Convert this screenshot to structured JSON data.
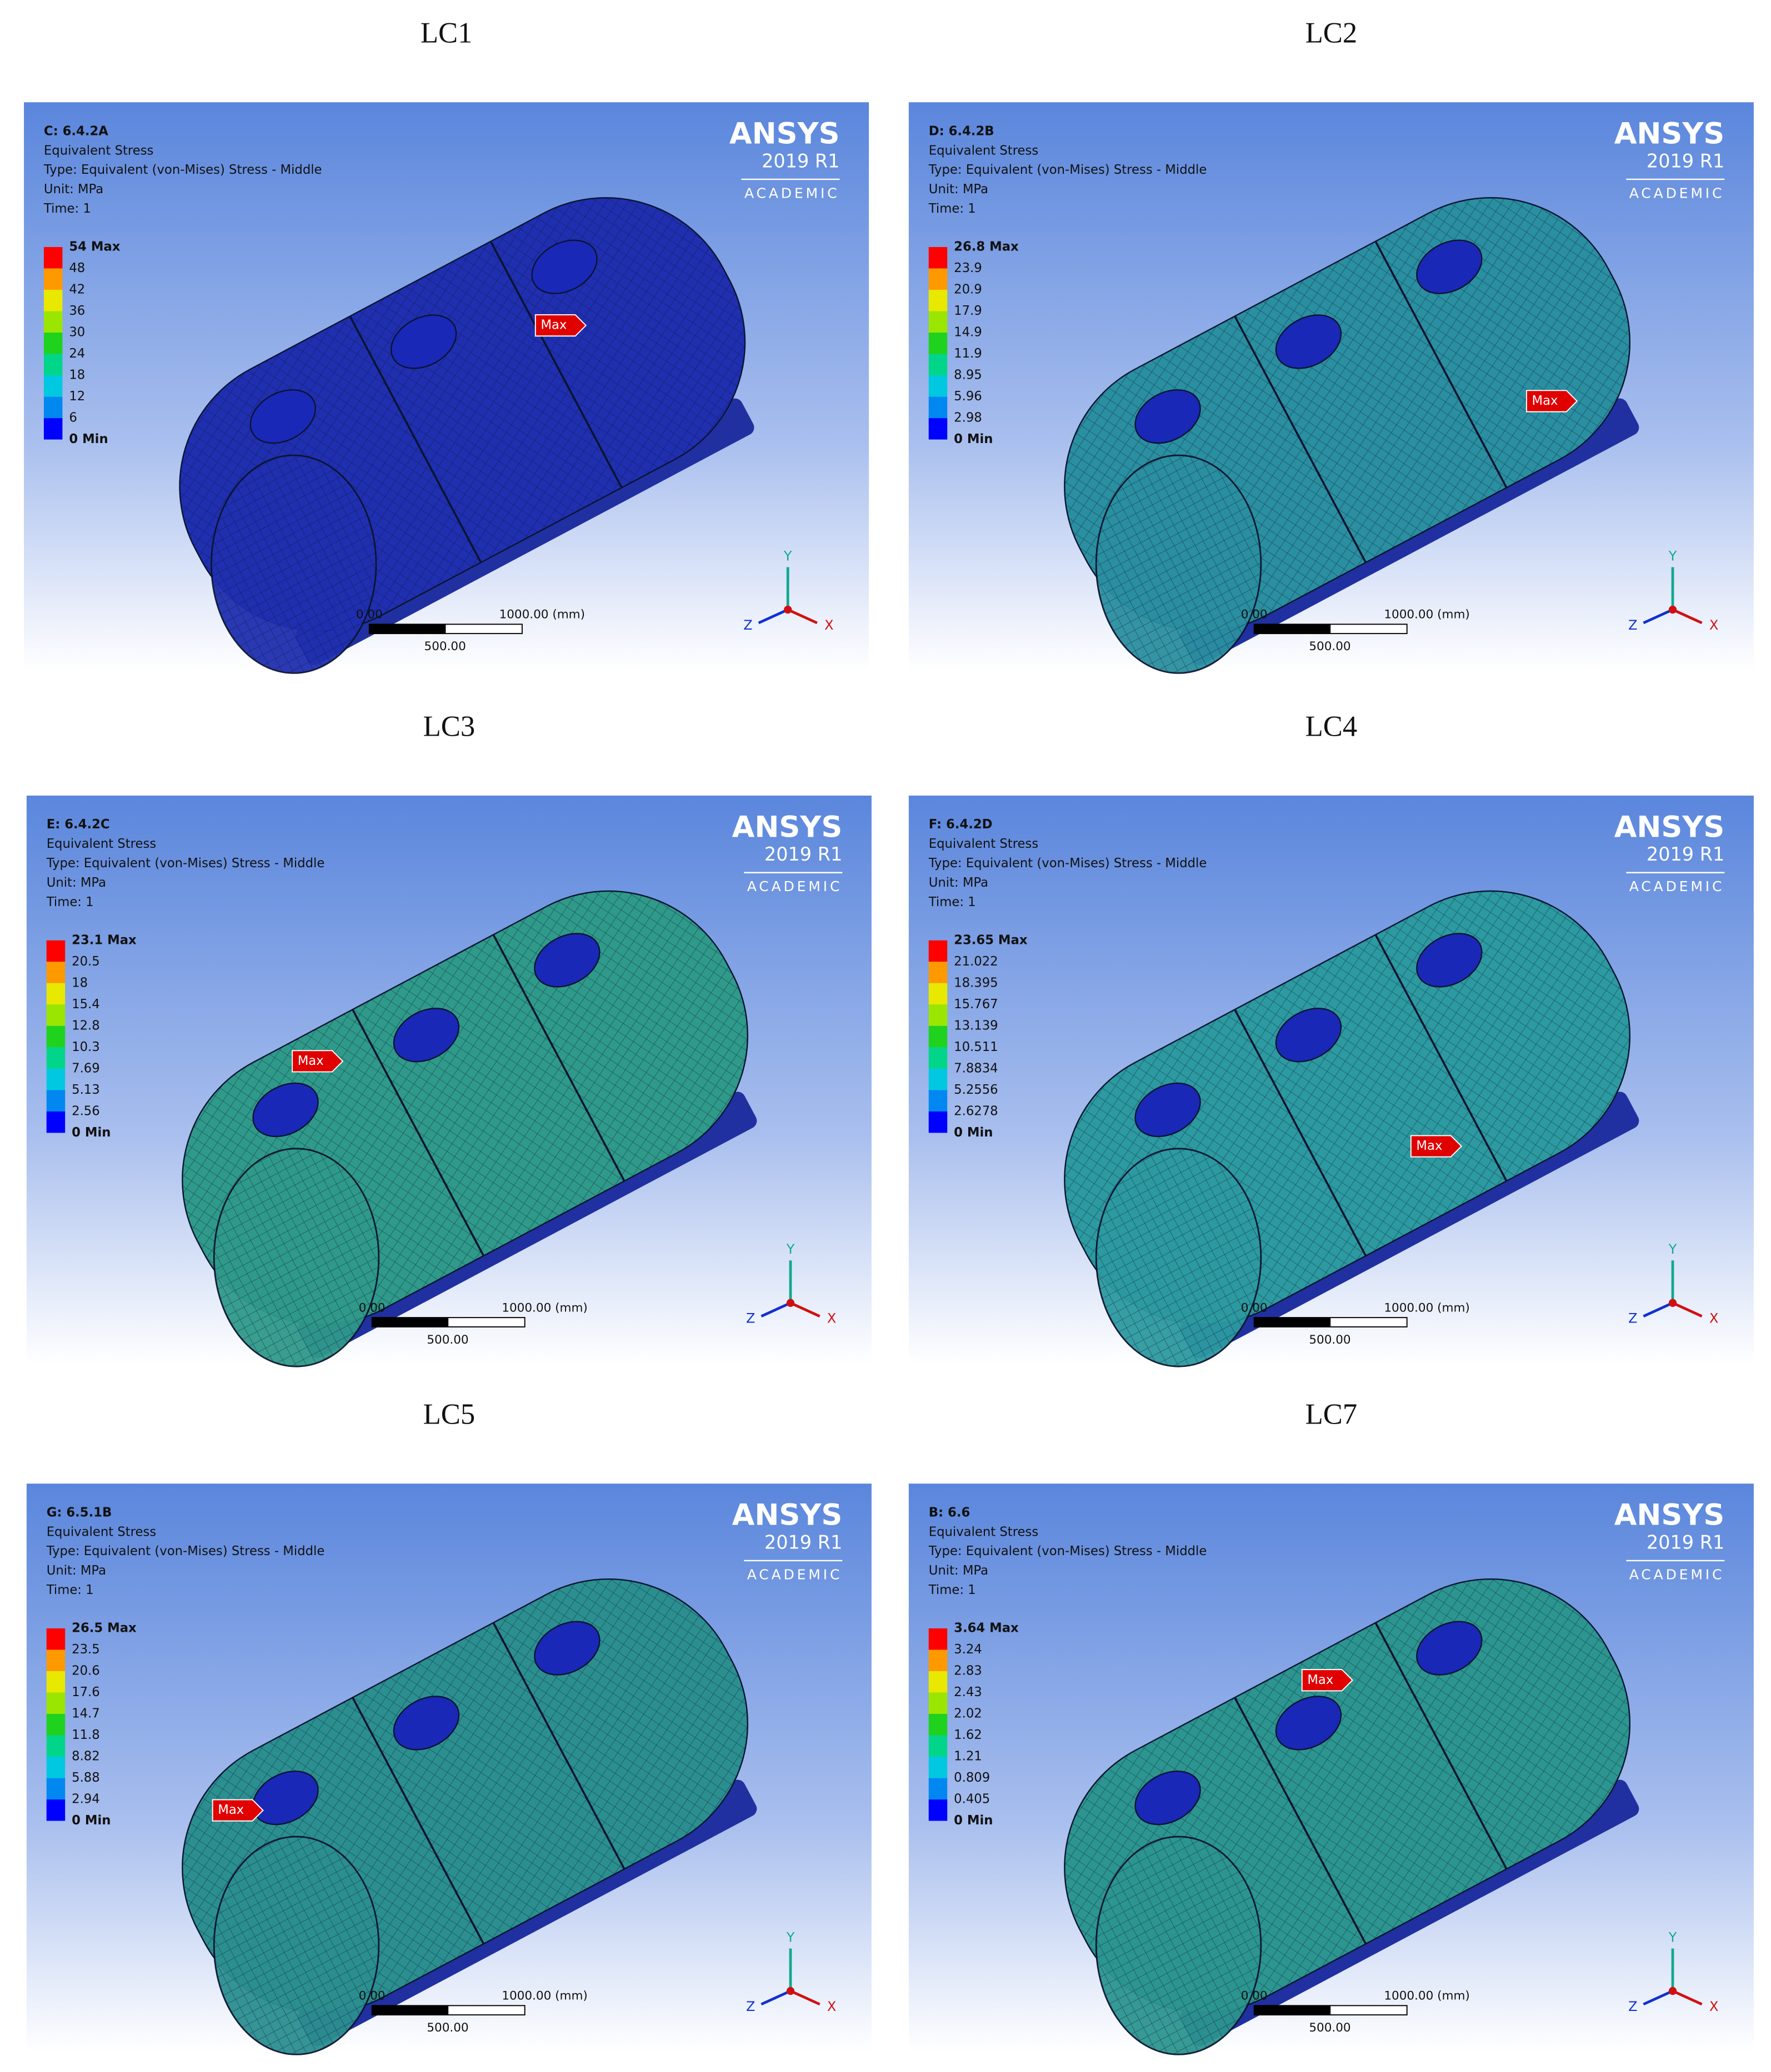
{
  "panels": [
    {
      "label": "LC1",
      "id": "C: 6.4.2A",
      "result": "Equivalent Stress",
      "type": "Type: Equivalent (von-Mises) Stress - Middle",
      "unit": "Unit: MPa",
      "time": "Time: 1",
      "legend": [
        "54 Max",
        "48",
        "42",
        "36",
        "30",
        "24",
        "18",
        "12",
        "6",
        "0 Min"
      ],
      "surface_color": "#1f2fb0"
    },
    {
      "label": "LC2",
      "id": "D: 6.4.2B",
      "result": "Equivalent Stress",
      "type": "Type: Equivalent (von-Mises) Stress - Middle",
      "unit": "Unit: MPa",
      "time": "Time: 1",
      "legend": [
        "26.8 Max",
        "23.9",
        "20.9",
        "17.9",
        "14.9",
        "11.9",
        "8.95",
        "5.96",
        "2.98",
        "0 Min"
      ],
      "surface_color": "#2a8fa0"
    },
    {
      "label": "LC3",
      "id": "E: 6.4.2C",
      "result": "Equivalent Stress",
      "type": "Type: Equivalent (von-Mises) Stress - Middle",
      "unit": "Unit: MPa",
      "time": "Time: 1",
      "legend": [
        "23.1 Max",
        "20.5",
        "18",
        "15.4",
        "12.8",
        "10.3",
        "7.69",
        "5.13",
        "2.56",
        "0 Min"
      ],
      "surface_color": "#2f9a8a"
    },
    {
      "label": "LC4",
      "id": "F: 6.4.2D",
      "result": "Equivalent Stress",
      "type": "Type: Equivalent (von-Mises) Stress - Middle",
      "unit": "Unit: MPa",
      "time": "Time: 1",
      "legend": [
        "23.65 Max",
        "21.022",
        "18.395",
        "15.767",
        "13.139",
        "10.511",
        "7.8834",
        "5.2556",
        "2.6278",
        "0 Min"
      ],
      "surface_color": "#2c9aa0"
    },
    {
      "label": "LC5",
      "id": "G: 6.5.1B",
      "result": "Equivalent Stress",
      "type": "Type: Equivalent (von-Mises) Stress - Middle",
      "unit": "Unit: MPa",
      "time": "Time: 1",
      "legend": [
        "26.5 Max",
        "23.5",
        "20.6",
        "17.6",
        "14.7",
        "11.8",
        "8.82",
        "5.88",
        "2.94",
        "0 Min"
      ],
      "surface_color": "#2b8f90"
    },
    {
      "label": "LC7",
      "id": "B: 6.6",
      "result": "Equivalent Stress",
      "type": "Type: Equivalent (von-Mises) Stress - Middle",
      "unit": "Unit: MPa",
      "time": "Time: 1",
      "legend": [
        "3.64 Max",
        "3.24",
        "2.83",
        "2.43",
        "2.02",
        "1.62",
        "1.21",
        "0.809",
        "0.405",
        "0 Min"
      ],
      "surface_color": "#2c9590"
    }
  ],
  "logo": {
    "name": "ANSYS",
    "version": "2019 R1",
    "edition": "ACADEMIC"
  },
  "scale_bar": {
    "start": "0.00",
    "end": "1000.00 (mm)",
    "middle": "500.00"
  },
  "triad": {
    "x": "X",
    "y": "Y",
    "z": "Z"
  },
  "max_marker": "Max"
}
